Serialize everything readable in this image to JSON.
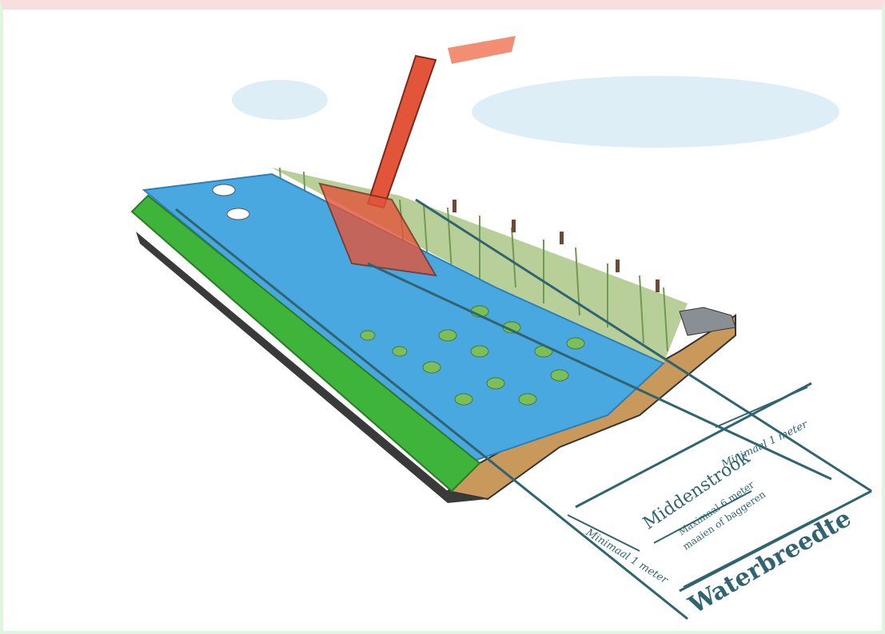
{
  "labels": {
    "margin_top": "Minimaal 1 meter",
    "margin_bottom": "Minimaal 1 meter",
    "middle_title": "Middenstrook",
    "middle_line1": "Maximaal 6 meter",
    "middle_line2": "maaien of baggeren",
    "width_title": "Waterbreedte"
  }
}
